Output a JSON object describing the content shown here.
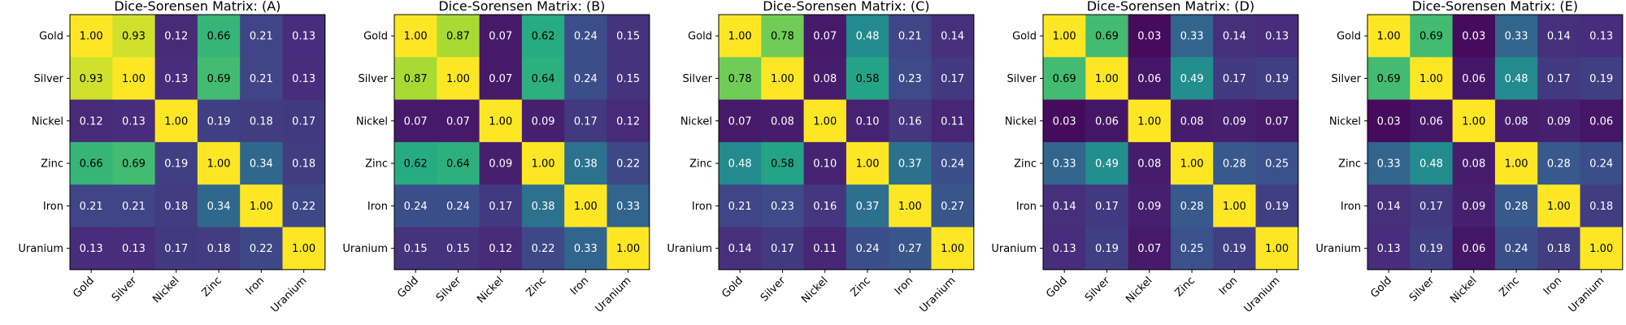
{
  "chart_data": [
    {
      "type": "heatmap",
      "title": "Dice-Sorensen Matrix: (A)",
      "labels": [
        "Gold",
        "Silver",
        "Nickel",
        "Zinc",
        "Iron",
        "Uranium"
      ],
      "values": [
        [
          1.0,
          0.93,
          0.12,
          0.66,
          0.21,
          0.13
        ],
        [
          0.93,
          1.0,
          0.13,
          0.69,
          0.21,
          0.13
        ],
        [
          0.12,
          0.13,
          1.0,
          0.19,
          0.18,
          0.17
        ],
        [
          0.66,
          0.69,
          0.19,
          1.0,
          0.34,
          0.18
        ],
        [
          0.21,
          0.21,
          0.18,
          0.34,
          1.0,
          0.22
        ],
        [
          0.13,
          0.13,
          0.17,
          0.18,
          0.22,
          1.0
        ]
      ]
    },
    {
      "type": "heatmap",
      "title": "Dice-Sorensen Matrix: (B)",
      "labels": [
        "Gold",
        "Silver",
        "Nickel",
        "Zinc",
        "Iron",
        "Uranium"
      ],
      "values": [
        [
          1.0,
          0.87,
          0.07,
          0.62,
          0.24,
          0.15
        ],
        [
          0.87,
          1.0,
          0.07,
          0.64,
          0.24,
          0.15
        ],
        [
          0.07,
          0.07,
          1.0,
          0.09,
          0.17,
          0.12
        ],
        [
          0.62,
          0.64,
          0.09,
          1.0,
          0.38,
          0.22
        ],
        [
          0.24,
          0.24,
          0.17,
          0.38,
          1.0,
          0.33
        ],
        [
          0.15,
          0.15,
          0.12,
          0.22,
          0.33,
          1.0
        ]
      ]
    },
    {
      "type": "heatmap",
      "title": "Dice-Sorensen Matrix: (C)",
      "labels": [
        "Gold",
        "Silver",
        "Nickel",
        "Zinc",
        "Iron",
        "Uranium"
      ],
      "values": [
        [
          1.0,
          0.78,
          0.07,
          0.48,
          0.21,
          0.14
        ],
        [
          0.78,
          1.0,
          0.08,
          0.58,
          0.23,
          0.17
        ],
        [
          0.07,
          0.08,
          1.0,
          0.1,
          0.16,
          0.11
        ],
        [
          0.48,
          0.58,
          0.1,
          1.0,
          0.37,
          0.24
        ],
        [
          0.21,
          0.23,
          0.16,
          0.37,
          1.0,
          0.27
        ],
        [
          0.14,
          0.17,
          0.11,
          0.24,
          0.27,
          1.0
        ]
      ]
    },
    {
      "type": "heatmap",
      "title": "Dice-Sorensen Matrix: (D)",
      "labels": [
        "Gold",
        "Silver",
        "Nickel",
        "Zinc",
        "Iron",
        "Uranium"
      ],
      "values": [
        [
          1.0,
          0.69,
          0.03,
          0.33,
          0.14,
          0.13
        ],
        [
          0.69,
          1.0,
          0.06,
          0.49,
          0.17,
          0.19
        ],
        [
          0.03,
          0.06,
          1.0,
          0.08,
          0.09,
          0.07
        ],
        [
          0.33,
          0.49,
          0.08,
          1.0,
          0.28,
          0.25
        ],
        [
          0.14,
          0.17,
          0.09,
          0.28,
          1.0,
          0.19
        ],
        [
          0.13,
          0.19,
          0.07,
          0.25,
          0.19,
          1.0
        ]
      ]
    },
    {
      "type": "heatmap",
      "title": "Dice-Sorensen Matrix: (E)",
      "labels": [
        "Gold",
        "Silver",
        "Nickel",
        "Zinc",
        "Iron",
        "Uranium"
      ],
      "values": [
        [
          1.0,
          0.69,
          0.03,
          0.33,
          0.14,
          0.13
        ],
        [
          0.69,
          1.0,
          0.06,
          0.48,
          0.17,
          0.19
        ],
        [
          0.03,
          0.06,
          1.0,
          0.08,
          0.09,
          0.06
        ],
        [
          0.33,
          0.48,
          0.08,
          1.0,
          0.28,
          0.24
        ],
        [
          0.14,
          0.17,
          0.09,
          0.28,
          1.0,
          0.18
        ],
        [
          0.13,
          0.19,
          0.06,
          0.24,
          0.18,
          1.0
        ]
      ]
    }
  ],
  "colormap": "viridis",
  "color_range": [
    0,
    1
  ],
  "value_format": "2 decimals"
}
